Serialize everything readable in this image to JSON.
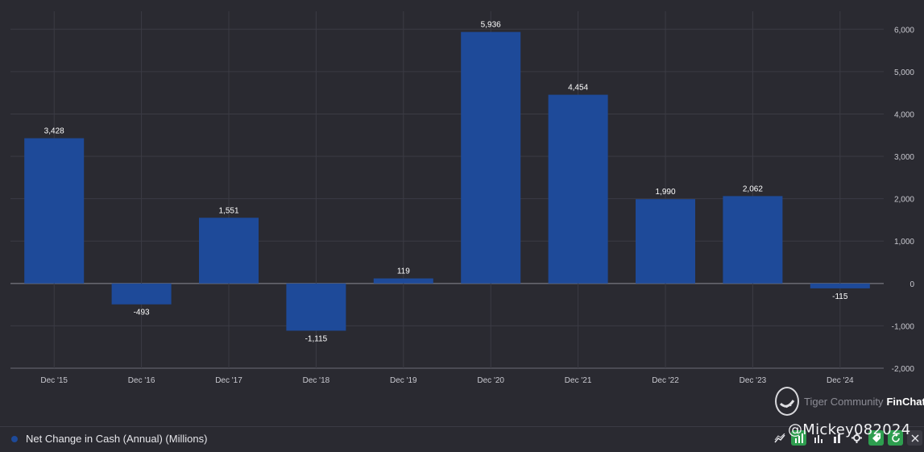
{
  "chart_data": {
    "type": "bar",
    "categories": [
      "Dec '15",
      "Dec '16",
      "Dec '17",
      "Dec '18",
      "Dec '19",
      "Dec '20",
      "Dec '21",
      "Dec '22",
      "Dec '23",
      "Dec '24"
    ],
    "tick_labels": [
      "Dec '15",
      "Dec '16",
      "Dec '17",
      "Dec '18",
      "Dec '19",
      "Dec '20",
      "Dec '21",
      "Dec '22",
      "Dec '23",
      "Dec '24"
    ],
    "values": [
      3428,
      -493,
      1551,
      -1115,
      119,
      5936,
      4454,
      1990,
      2062,
      -115
    ],
    "data_labels": [
      "3,428",
      "-493",
      "1,551",
      "-1,115",
      "119",
      "5,936",
      "4,454",
      "1,990",
      "2,062",
      "-115"
    ],
    "y_ticks": [
      6000,
      5000,
      4000,
      3000,
      2000,
      1000,
      0,
      -1000,
      -2000
    ],
    "y_tick_labels": [
      "6,000",
      "5,000",
      "4,000",
      "3,000",
      "2,000",
      "1,000",
      "0",
      "-1,000",
      "-2,000"
    ],
    "ylim": [
      -2000,
      6500
    ],
    "series_name": "Net Change in Cash (Annual) (Millions)",
    "color": "#1e4a99",
    "grid": true,
    "y_axis_side": "right"
  },
  "legend": {
    "label": "Net Change in Cash (Annual) (Millions)"
  },
  "watermark": {
    "prefix": "Tiger Community",
    "brand": "FinChat",
    "handle": "@Mickey082024"
  },
  "toolbar": {
    "icons": [
      "line-chart-icon",
      "bar-chart-icon",
      "bar-chart-outline-icon",
      "stacked-bar-icon",
      "gear-icon",
      "tag-icon",
      "refresh-icon",
      "close-icon"
    ]
  }
}
